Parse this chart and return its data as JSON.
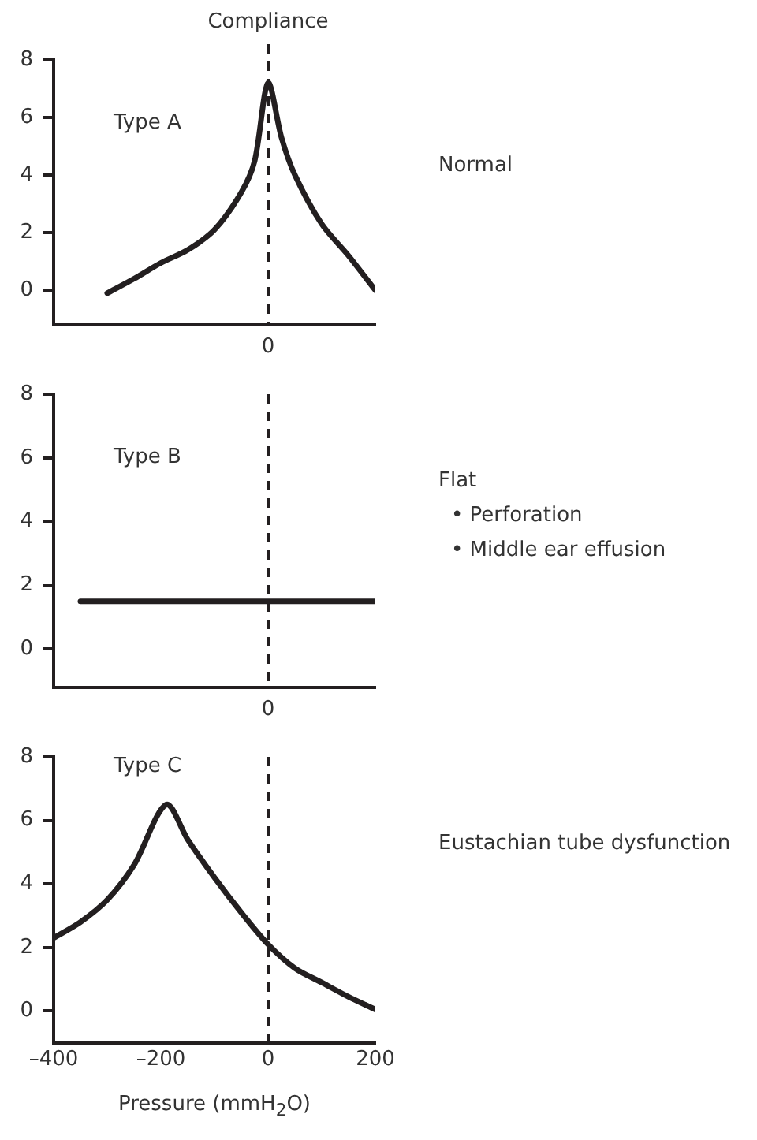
{
  "chart_data": [
    {
      "type": "line",
      "title": "Type A",
      "ylabel": "Compliance",
      "annotations": [
        "Normal"
      ],
      "xlim": [
        -400,
        200
      ],
      "ylim": [
        -1.2,
        8
      ],
      "yticks": [
        0,
        2,
        4,
        6,
        8
      ],
      "tick_labels": "y",
      "grid": false,
      "legend": false,
      "marker": "none",
      "line_style": "solid",
      "series": [
        {
          "color": "#231f20",
          "x": [
            -300,
            -250,
            -200,
            -150,
            -100,
            -50,
            -25,
            0,
            25,
            50,
            100,
            150,
            200
          ],
          "values": [
            -0.1,
            0.4,
            0.95,
            1.4,
            2.1,
            3.4,
            4.5,
            7.2,
            5.3,
            4.0,
            2.3,
            1.2,
            0
          ]
        }
      ],
      "ref_lines": [
        {
          "axis": "x",
          "value": 0,
          "label": "0",
          "line_style": "dashed",
          "color": "#231f20"
        }
      ]
    },
    {
      "type": "line",
      "title": "Type B",
      "annotations": [
        "Flat",
        "• Perforation",
        "• Middle ear effusion"
      ],
      "xlim": [
        -400,
        200
      ],
      "ylim": [
        -1.2,
        8
      ],
      "yticks": [
        0,
        2,
        4,
        6,
        8
      ],
      "tick_labels": "y",
      "grid": false,
      "legend": false,
      "marker": "none",
      "line_style": "solid",
      "series": [
        {
          "color": "#231f20",
          "x": [
            -350,
            200
          ],
          "values": [
            1.5,
            1.5
          ]
        }
      ],
      "ref_lines": [
        {
          "axis": "x",
          "value": 0,
          "label": "0",
          "line_style": "dashed",
          "color": "#231f20"
        }
      ]
    },
    {
      "type": "line",
      "title": "Type C",
      "xlabel": "Pressure (mmH$_{2}$O)",
      "annotations": [
        "Eustachian tube dysfunction"
      ],
      "xlim": [
        -400,
        200
      ],
      "xticks": [
        {
          "value": -400,
          "label": "–400"
        },
        {
          "value": -200,
          "label": "–200"
        },
        0,
        200
      ],
      "ylim": [
        -1,
        8
      ],
      "yticks": [
        0,
        2,
        4,
        6,
        8
      ],
      "grid": false,
      "legend": false,
      "marker": "none",
      "line_style": "solid",
      "series": [
        {
          "color": "#231f20",
          "x": [
            -400,
            -350,
            -300,
            -250,
            -190,
            -150,
            -100,
            -50,
            0,
            50,
            100,
            150,
            200
          ],
          "values": [
            2.3,
            2.8,
            3.5,
            4.6,
            6.5,
            5.4,
            4.2,
            3.1,
            2.1,
            1.35,
            0.9,
            0.45,
            0.05
          ]
        }
      ],
      "ref_lines": [
        {
          "axis": "x",
          "value": 0,
          "line_style": "dashed",
          "color": "#231f20"
        }
      ]
    }
  ]
}
